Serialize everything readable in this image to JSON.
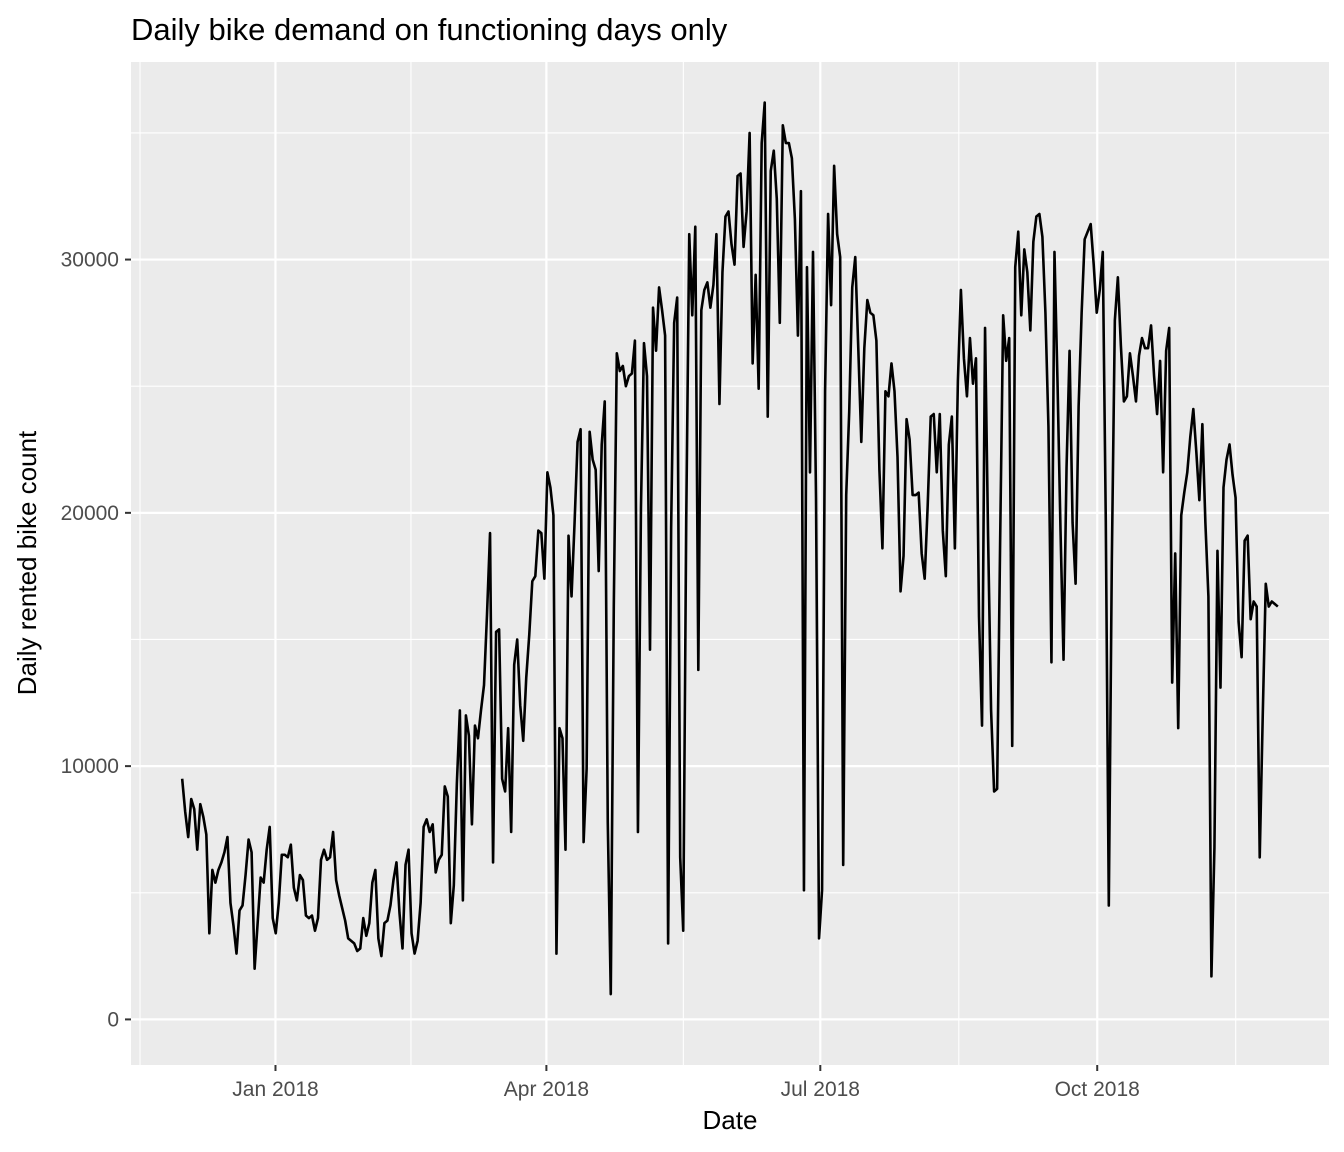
{
  "chart_data": {
    "type": "line",
    "title": "Daily bike demand on functioning days only",
    "xlabel": "Date",
    "ylabel": "Daily rented bike count",
    "x_start": "2017-12-01",
    "x_end": "2018-11-30",
    "xlim": [
      "2017-11-14",
      "2018-12-17"
    ],
    "ylim": [
      -1800,
      37800
    ],
    "x_ticks": [
      {
        "date": "2018-01-01",
        "label": "Jan 2018"
      },
      {
        "date": "2018-04-01",
        "label": "Apr 2018"
      },
      {
        "date": "2018-07-01",
        "label": "Jul 2018"
      },
      {
        "date": "2018-10-01",
        "label": "Oct 2018"
      }
    ],
    "y_ticks": [
      {
        "value": 0,
        "label": "0"
      },
      {
        "value": 10000,
        "label": "10000"
      },
      {
        "value": 20000,
        "label": "20000"
      },
      {
        "value": 30000,
        "label": "30000"
      }
    ],
    "grid": true,
    "legend": "none",
    "colors": {
      "panel": "#ebebeb",
      "grid": "#ffffff",
      "line": "#000000"
    },
    "series": [
      {
        "values": [
          9500,
          8200,
          7200,
          8700,
          8300,
          6700,
          8500,
          8000,
          7300,
          3400,
          5900,
          5400,
          5900,
          6200,
          6600,
          7200,
          4600,
          3700,
          2600,
          4300,
          4500,
          5700,
          7100,
          6600,
          2000,
          3800,
          5600,
          5400,
          6700,
          7600,
          4000,
          3400,
          4600,
          6500,
          6500,
          6400,
          6900,
          5200,
          4700,
          5700,
          5500,
          4100,
          4000,
          4100,
          3500,
          4000,
          6300,
          6700,
          6300,
          6400,
          7400,
          5500,
          4900,
          4400,
          3900,
          3200,
          3100,
          3000,
          2700,
          2800,
          4000,
          3300,
          3800,
          5400,
          5900,
          3200,
          2500,
          3800,
          3900,
          4500,
          5500,
          6200,
          4200,
          2800,
          6100,
          6700,
          3400,
          2600,
          3100,
          4600,
          7600,
          7900,
          7400,
          7700,
          5800,
          6300,
          6500,
          9200,
          8800,
          3800,
          5300,
          9300,
          12200,
          4700,
          12000,
          11200,
          7700,
          11600,
          11100,
          12200,
          13200,
          16000,
          19200,
          6200,
          15300,
          15400,
          9500,
          9000,
          11500,
          7400,
          14000,
          15000,
          12400,
          11000,
          13500,
          15200,
          17300,
          17500,
          19300,
          19200,
          17400,
          21600,
          21000,
          19900,
          2600,
          11500,
          11100,
          6700,
          19100,
          16700,
          19600,
          22800,
          23300,
          7000,
          9900,
          23200,
          22100,
          21700,
          17700,
          22700,
          24400,
          7800,
          1000,
          16300,
          26300,
          25600,
          25800,
          25000,
          25400,
          25500,
          26800,
          7400,
          20200,
          26700,
          25400,
          14600,
          28100,
          26400,
          28900,
          28000,
          27000,
          3000,
          19400,
          27500,
          28500,
          6400,
          3500,
          19700,
          31000,
          27800,
          31300,
          13800,
          28000,
          28800,
          29100,
          28100,
          29000,
          31000,
          24300,
          29500,
          31700,
          31900,
          30600,
          29800,
          33300,
          33400,
          30500,
          31900,
          35000,
          25900,
          29400,
          24900,
          34600,
          36200,
          23800,
          33500,
          34300,
          32400,
          27500,
          35300,
          34600,
          34600,
          34000,
          31600,
          27000,
          32700,
          5100,
          29700,
          21600,
          30300,
          20600,
          3200,
          5100,
          24800,
          31800,
          28200,
          33700,
          31000,
          30100,
          6100,
          20700,
          24000,
          28900,
          30100,
          26500,
          22800,
          26500,
          28400,
          27900,
          27800,
          26800,
          21700,
          18600,
          24800,
          24600,
          25900,
          24800,
          22200,
          16900,
          18300,
          23700,
          22900,
          20700,
          20700,
          20800,
          18400,
          17400,
          20300,
          23800,
          23900,
          21600,
          23900,
          19300,
          17500,
          22700,
          23800,
          18600,
          25200,
          28800,
          26100,
          24600,
          26900,
          25100,
          26100,
          15900,
          11600,
          27300,
          19100,
          12200,
          9000,
          9100,
          18900,
          27800,
          26000,
          26900,
          10800,
          29700,
          31100,
          27800,
          30400,
          29500,
          27200,
          30700,
          31700,
          31800,
          30900,
          27900,
          23400,
          14100,
          30300,
          25200,
          19300,
          14200,
          21800,
          26400,
          19600,
          17200,
          24200,
          27900,
          30800,
          31100,
          31400,
          29800,
          27900,
          28800,
          30300,
          19700,
          4500,
          18100,
          27600,
          29300,
          26600,
          24400,
          24600,
          26300,
          25400,
          24400,
          26200,
          26900,
          26500,
          26500,
          27400,
          25400,
          23900,
          26000,
          21600,
          26400,
          27300,
          13300,
          18400,
          11500,
          19900,
          20800,
          21600,
          23000,
          24100,
          22400,
          20500,
          23500,
          19600,
          16700,
          1700,
          6800,
          18500,
          13100,
          21000,
          22100,
          22700,
          21500,
          20600,
          15700,
          14300,
          18900,
          19100,
          15800,
          16500,
          16300,
          6400,
          12000,
          17200,
          16300,
          16500,
          16400,
          16300
        ]
      }
    ]
  }
}
